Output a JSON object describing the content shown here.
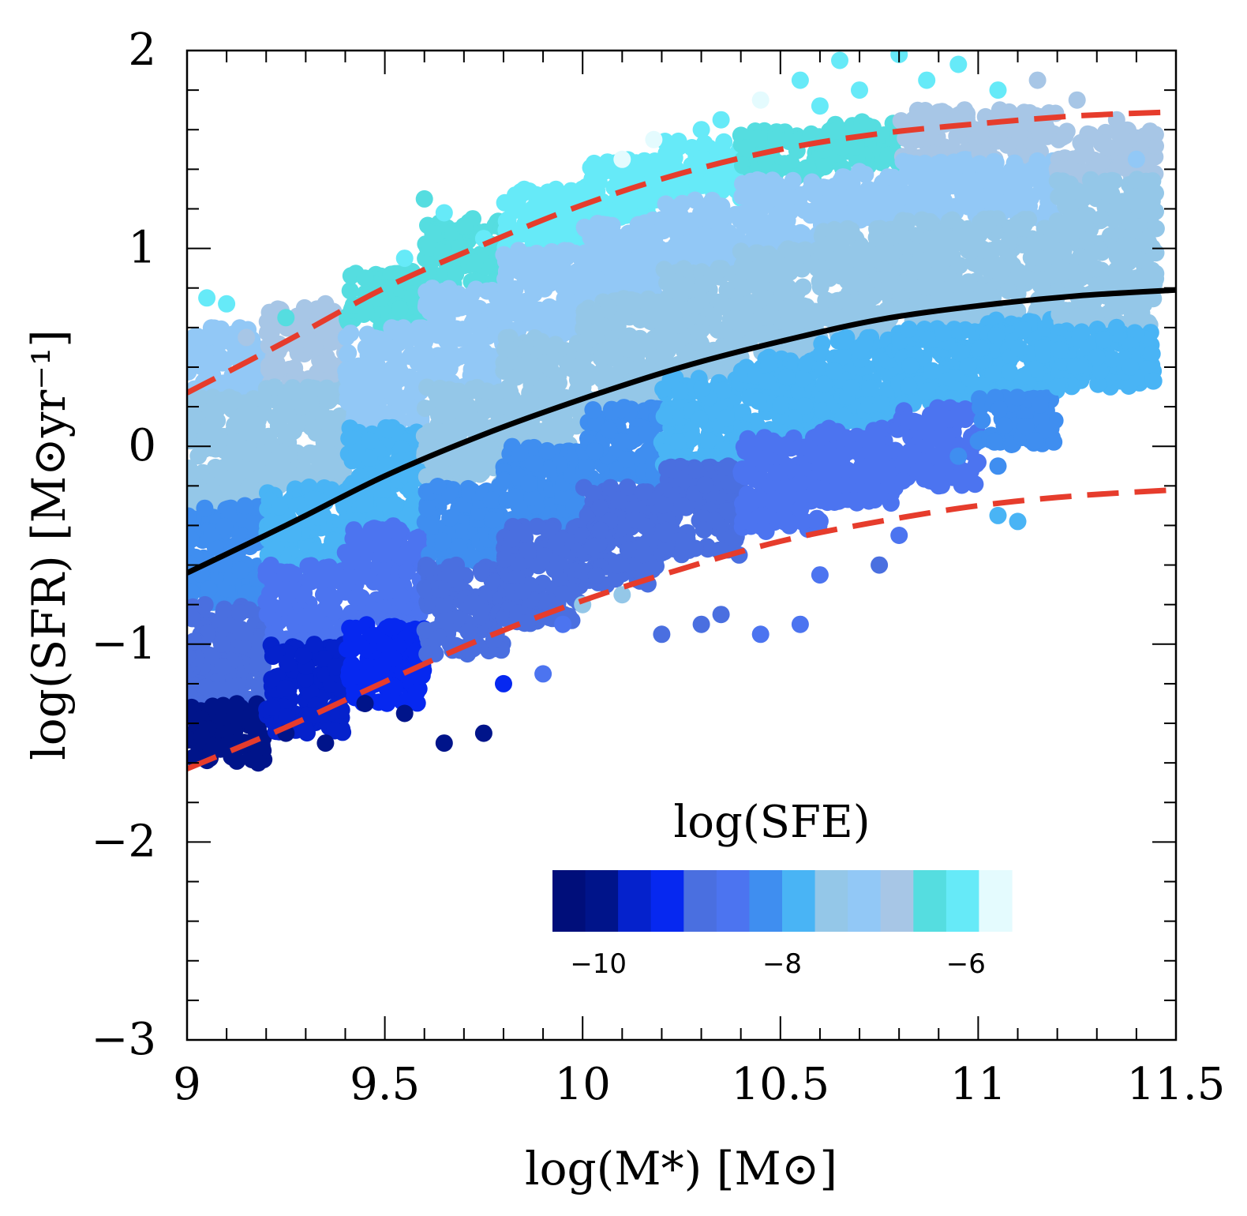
{
  "chart_data": {
    "type": "scatter",
    "title": "",
    "xlabel": "log(M*) [M⊙]",
    "ylabel": "log(SFR) [M⊙yr⁻¹]",
    "xlim": [
      9,
      11.5
    ],
    "ylim": [
      -3,
      2
    ],
    "x_ticks": [
      {
        "value": 9,
        "label": "9"
      },
      {
        "value": 9.5,
        "label": "9.5"
      },
      {
        "value": 10,
        "label": "10"
      },
      {
        "value": 10.5,
        "label": "10.5"
      },
      {
        "value": 11,
        "label": "11"
      },
      {
        "value": 11.5,
        "label": "11.5"
      }
    ],
    "y_ticks": [
      {
        "value": -3,
        "label": "−3"
      },
      {
        "value": -2,
        "label": "−2"
      },
      {
        "value": -1,
        "label": "−1"
      },
      {
        "value": 0,
        "label": "0"
      },
      {
        "value": 1,
        "label": "1"
      },
      {
        "value": 2,
        "label": "2"
      }
    ],
    "colorbar": {
      "title": "log(SFE)",
      "range": [
        -10.5,
        -5.5
      ],
      "tick_labels": [
        {
          "value": -10,
          "label": "−10"
        },
        {
          "value": -8,
          "label": "−8"
        },
        {
          "value": -6,
          "label": "−6"
        }
      ],
      "colors": [
        "#000e7a",
        "#00148a",
        "#0522cc",
        "#0628f0",
        "#4a6fe0",
        "#4c74f0",
        "#3f8ef0",
        "#49b4f5",
        "#94c7e8",
        "#92c8f6",
        "#a7c6e6",
        "#55dde0",
        "#66eaf8",
        "#e4fbfe"
      ]
    },
    "series": [
      {
        "name": "main sequence fit",
        "style": "solid",
        "color": "#000000",
        "points": [
          [
            9.0,
            -0.64
          ],
          [
            9.25,
            -0.4
          ],
          [
            9.5,
            -0.15
          ],
          [
            9.75,
            0.06
          ],
          [
            10.0,
            0.24
          ],
          [
            10.25,
            0.4
          ],
          [
            10.5,
            0.53
          ],
          [
            10.75,
            0.64
          ],
          [
            11.0,
            0.71
          ],
          [
            11.25,
            0.76
          ],
          [
            11.5,
            0.79
          ]
        ]
      },
      {
        "name": "upper envelope",
        "style": "dashed",
        "color": "#e63c2c",
        "points": [
          [
            9.0,
            0.27
          ],
          [
            9.25,
            0.53
          ],
          [
            9.5,
            0.8
          ],
          [
            9.75,
            1.02
          ],
          [
            10.0,
            1.22
          ],
          [
            10.25,
            1.38
          ],
          [
            10.5,
            1.5
          ],
          [
            10.75,
            1.58
          ],
          [
            11.0,
            1.63
          ],
          [
            11.25,
            1.67
          ],
          [
            11.5,
            1.69
          ]
        ]
      },
      {
        "name": "lower envelope",
        "style": "dashed",
        "color": "#e63c2c",
        "points": [
          [
            9.0,
            -1.63
          ],
          [
            9.25,
            -1.42
          ],
          [
            9.5,
            -1.19
          ],
          [
            9.75,
            -0.97
          ],
          [
            10.0,
            -0.78
          ],
          [
            10.25,
            -0.62
          ],
          [
            10.5,
            -0.48
          ],
          [
            10.75,
            -0.38
          ],
          [
            11.0,
            -0.3
          ],
          [
            11.25,
            -0.25
          ],
          [
            11.5,
            -0.22
          ]
        ]
      }
    ],
    "scatter_bins": {
      "description": "galaxies colored by log(SFE), binned in mass columns",
      "columns": [
        {
          "x": [
            9.0,
            9.2
          ],
          "bands": [
            {
              "y": [
                0.25,
                0.6
              ],
              "sfe": -7.0
            },
            {
              "y": [
                -0.3,
                0.25
              ],
              "sfe": -7.4
            },
            {
              "y": [
                -0.8,
                -0.3
              ],
              "sfe": -8.2
            },
            {
              "y": [
                -1.3,
                -0.8
              ],
              "sfe": -9.0
            },
            {
              "y": [
                -1.6,
                -1.3
              ],
              "sfe": -10.0
            }
          ]
        },
        {
          "x": [
            9.2,
            9.4
          ],
          "bands": [
            {
              "y": [
                0.3,
                0.7
              ],
              "sfe": -6.8
            },
            {
              "y": [
                -0.2,
                0.3
              ],
              "sfe": -7.4
            },
            {
              "y": [
                -0.6,
                -0.2
              ],
              "sfe": -8.0
            },
            {
              "y": [
                -1.0,
                -0.6
              ],
              "sfe": -8.6
            },
            {
              "y": [
                -1.45,
                -1.0
              ],
              "sfe": -9.6
            }
          ]
        },
        {
          "x": [
            9.4,
            9.6
          ],
          "bands": [
            {
              "y": [
                0.6,
                0.9
              ],
              "sfe": -6.5
            },
            {
              "y": [
                0.1,
                0.6
              ],
              "sfe": -7.2
            },
            {
              "y": [
                -0.4,
                0.1
              ],
              "sfe": -7.8
            },
            {
              "y": [
                -0.9,
                -0.4
              ],
              "sfe": -8.4
            },
            {
              "y": [
                -1.3,
                -0.9
              ],
              "sfe": -9.2
            }
          ]
        },
        {
          "x": [
            9.6,
            9.8
          ],
          "bands": [
            {
              "y": [
                0.8,
                1.15
              ],
              "sfe": -6.3
            },
            {
              "y": [
                0.3,
                0.8
              ],
              "sfe": -7.0
            },
            {
              "y": [
                -0.2,
                0.3
              ],
              "sfe": -7.6
            },
            {
              "y": [
                -0.6,
                -0.2
              ],
              "sfe": -8.3
            },
            {
              "y": [
                -1.05,
                -0.6
              ],
              "sfe": -9.0
            }
          ]
        },
        {
          "x": [
            9.8,
            10.0
          ],
          "bands": [
            {
              "y": [
                1.0,
                1.3
              ],
              "sfe": -6.0
            },
            {
              "y": [
                0.55,
                1.0
              ],
              "sfe": -7.0
            },
            {
              "y": [
                0.0,
                0.55
              ],
              "sfe": -7.5
            },
            {
              "y": [
                -0.4,
                0.0
              ],
              "sfe": -8.2
            },
            {
              "y": [
                -0.9,
                -0.4
              ],
              "sfe": -9.0
            }
          ]
        },
        {
          "x": [
            10.0,
            10.2
          ],
          "bands": [
            {
              "y": [
                1.15,
                1.45
              ],
              "sfe": -6.0
            },
            {
              "y": [
                0.75,
                1.15
              ],
              "sfe": -7.0
            },
            {
              "y": [
                0.2,
                0.75
              ],
              "sfe": -7.5
            },
            {
              "y": [
                -0.2,
                0.2
              ],
              "sfe": -8.2
            },
            {
              "y": [
                -0.7,
                -0.2
              ],
              "sfe": -8.9
            }
          ]
        },
        {
          "x": [
            10.2,
            10.4
          ],
          "bands": [
            {
              "y": [
                1.25,
                1.55
              ],
              "sfe": -6.2
            },
            {
              "y": [
                0.9,
                1.25
              ],
              "sfe": -7.0
            },
            {
              "y": [
                0.35,
                0.9
              ],
              "sfe": -7.4
            },
            {
              "y": [
                -0.1,
                0.35
              ],
              "sfe": -8.0
            },
            {
              "y": [
                -0.55,
                -0.1
              ],
              "sfe": -8.8
            }
          ]
        },
        {
          "x": [
            10.4,
            10.6
          ],
          "bands": [
            {
              "y": [
                1.35,
                1.6
              ],
              "sfe": -6.3
            },
            {
              "y": [
                1.0,
                1.35
              ],
              "sfe": -7.0
            },
            {
              "y": [
                0.45,
                1.0
              ],
              "sfe": -7.4
            },
            {
              "y": [
                0.05,
                0.45
              ],
              "sfe": -8.0
            },
            {
              "y": [
                -0.45,
                0.05
              ],
              "sfe": -8.6
            }
          ]
        },
        {
          "x": [
            10.6,
            10.8
          ],
          "bands": [
            {
              "y": [
                1.4,
                1.65
              ],
              "sfe": -6.5
            },
            {
              "y": [
                1.1,
                1.4
              ],
              "sfe": -7.0
            },
            {
              "y": [
                0.55,
                1.1
              ],
              "sfe": -7.4
            },
            {
              "y": [
                0.1,
                0.55
              ],
              "sfe": -7.9
            },
            {
              "y": [
                -0.3,
                0.1
              ],
              "sfe": -8.5
            }
          ]
        },
        {
          "x": [
            10.8,
            11.0
          ],
          "bands": [
            {
              "y": [
                1.45,
                1.7
              ],
              "sfe": -6.6
            },
            {
              "y": [
                1.15,
                1.45
              ],
              "sfe": -7.0
            },
            {
              "y": [
                0.6,
                1.15
              ],
              "sfe": -7.4
            },
            {
              "y": [
                0.2,
                0.6
              ],
              "sfe": -7.9
            },
            {
              "y": [
                -0.2,
                0.2
              ],
              "sfe": -8.4
            }
          ]
        },
        {
          "x": [
            11.0,
            11.2
          ],
          "bands": [
            {
              "y": [
                1.45,
                1.7
              ],
              "sfe": -6.8
            },
            {
              "y": [
                1.15,
                1.45
              ],
              "sfe": -7.1
            },
            {
              "y": [
                0.65,
                1.15
              ],
              "sfe": -7.4
            },
            {
              "y": [
                0.25,
                0.65
              ],
              "sfe": -7.8
            },
            {
              "y": [
                0.0,
                0.25
              ],
              "sfe": -8.3
            }
          ]
        },
        {
          "x": [
            11.2,
            11.45
          ],
          "bands": [
            {
              "y": [
                1.35,
                1.6
              ],
              "sfe": -6.9
            },
            {
              "y": [
                1.0,
                1.35
              ],
              "sfe": -7.3
            },
            {
              "y": [
                0.6,
                1.0
              ],
              "sfe": -7.5
            },
            {
              "y": [
                0.3,
                0.6
              ],
              "sfe": -7.8
            }
          ]
        }
      ],
      "scattered_points": [
        [
          9.05,
          0.75,
          -6.0
        ],
        [
          9.1,
          0.72,
          -6.0
        ],
        [
          9.15,
          0.55,
          -6.6
        ],
        [
          9.25,
          0.65,
          -6.5
        ],
        [
          9.35,
          0.72,
          -6.6
        ],
        [
          9.45,
          0.85,
          -6.5
        ],
        [
          9.55,
          0.95,
          -6.2
        ],
        [
          9.6,
          1.25,
          -6.4
        ],
        [
          9.65,
          1.18,
          -6.0
        ],
        [
          9.75,
          1.05,
          -6.0
        ],
        [
          9.85,
          1.28,
          -5.9
        ],
        [
          9.9,
          1.22,
          -5.9
        ],
        [
          10.0,
          1.3,
          -6.0
        ],
        [
          10.1,
          1.45,
          -5.8
        ],
        [
          10.18,
          1.55,
          -5.6
        ],
        [
          10.3,
          1.6,
          -6.0
        ],
        [
          10.35,
          1.65,
          -6.0
        ],
        [
          10.45,
          1.75,
          -5.6
        ],
        [
          10.55,
          1.85,
          -6.0
        ],
        [
          10.6,
          1.72,
          -6.0
        ],
        [
          10.65,
          1.95,
          -5.9
        ],
        [
          10.7,
          1.8,
          -6.0
        ],
        [
          10.8,
          1.98,
          -5.9
        ],
        [
          10.87,
          1.85,
          -5.9
        ],
        [
          10.95,
          1.93,
          -6.0
        ],
        [
          11.05,
          1.8,
          -6.0
        ],
        [
          11.15,
          1.85,
          -6.6
        ],
        [
          11.25,
          1.75,
          -6.8
        ],
        [
          11.35,
          1.65,
          -6.8
        ],
        [
          11.4,
          1.45,
          -7.0
        ],
        [
          11.45,
          1.1,
          -7.4
        ],
        [
          11.4,
          0.85,
          -7.6
        ],
        [
          11.35,
          0.6,
          -7.8
        ],
        [
          11.3,
          0.45,
          -8.0
        ],
        [
          11.2,
          0.3,
          -8.0
        ],
        [
          11.12,
          0.1,
          -8.2
        ],
        [
          11.05,
          -0.1,
          -8.2
        ],
        [
          10.95,
          -0.05,
          -8.3
        ],
        [
          10.9,
          -0.2,
          -8.4
        ],
        [
          10.8,
          -0.45,
          -8.5
        ],
        [
          10.75,
          -0.6,
          -9.0
        ],
        [
          10.6,
          -0.65,
          -8.6
        ],
        [
          10.55,
          -0.9,
          -8.6
        ],
        [
          10.45,
          -0.95,
          -8.6
        ],
        [
          10.35,
          -0.85,
          -8.8
        ],
        [
          10.3,
          -0.9,
          -8.8
        ],
        [
          10.2,
          -0.95,
          -9.0
        ],
        [
          10.1,
          -0.75,
          -7.6
        ],
        [
          10.0,
          -0.8,
          -7.4
        ],
        [
          9.95,
          -0.9,
          -8.4
        ],
        [
          9.9,
          -1.15,
          -8.4
        ],
        [
          9.8,
          -1.2,
          -9.2
        ],
        [
          9.75,
          -1.45,
          -10.0
        ],
        [
          9.65,
          -1.5,
          -10.0
        ],
        [
          9.55,
          -1.35,
          -10.0
        ],
        [
          9.45,
          -1.3,
          -10.0
        ],
        [
          9.35,
          -1.5,
          -10.0
        ],
        [
          9.25,
          -1.45,
          -10.0
        ],
        [
          9.18,
          -1.6,
          -10.0
        ],
        [
          11.05,
          -0.35,
          -7.8
        ],
        [
          11.1,
          -0.38,
          -7.8
        ]
      ]
    }
  }
}
